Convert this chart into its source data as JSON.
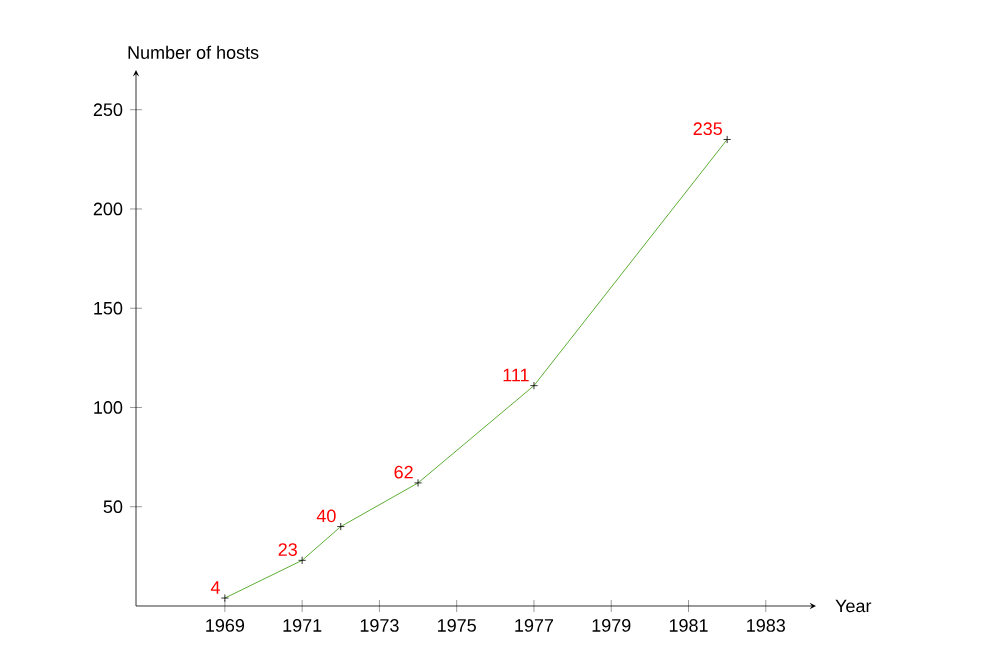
{
  "chart_data": {
    "type": "line",
    "xlabel": "Year",
    "ylabel": "Number of hosts",
    "x": [
      1969,
      1971,
      1972,
      1974,
      1977,
      1982
    ],
    "series": [
      {
        "color": "#339900",
        "values": [
          4,
          23,
          40,
          62,
          111,
          235
        ]
      }
    ],
    "xlim": [
      1966.7,
      1984.3
    ],
    "ylim": [
      0,
      270
    ],
    "xticks": [
      1969,
      1971,
      1973,
      1975,
      1977,
      1979,
      1981,
      1983
    ],
    "yticks": [
      50,
      100,
      150,
      200,
      250
    ],
    "marker": "cross",
    "line_style": "solid",
    "data_labels": true
  }
}
